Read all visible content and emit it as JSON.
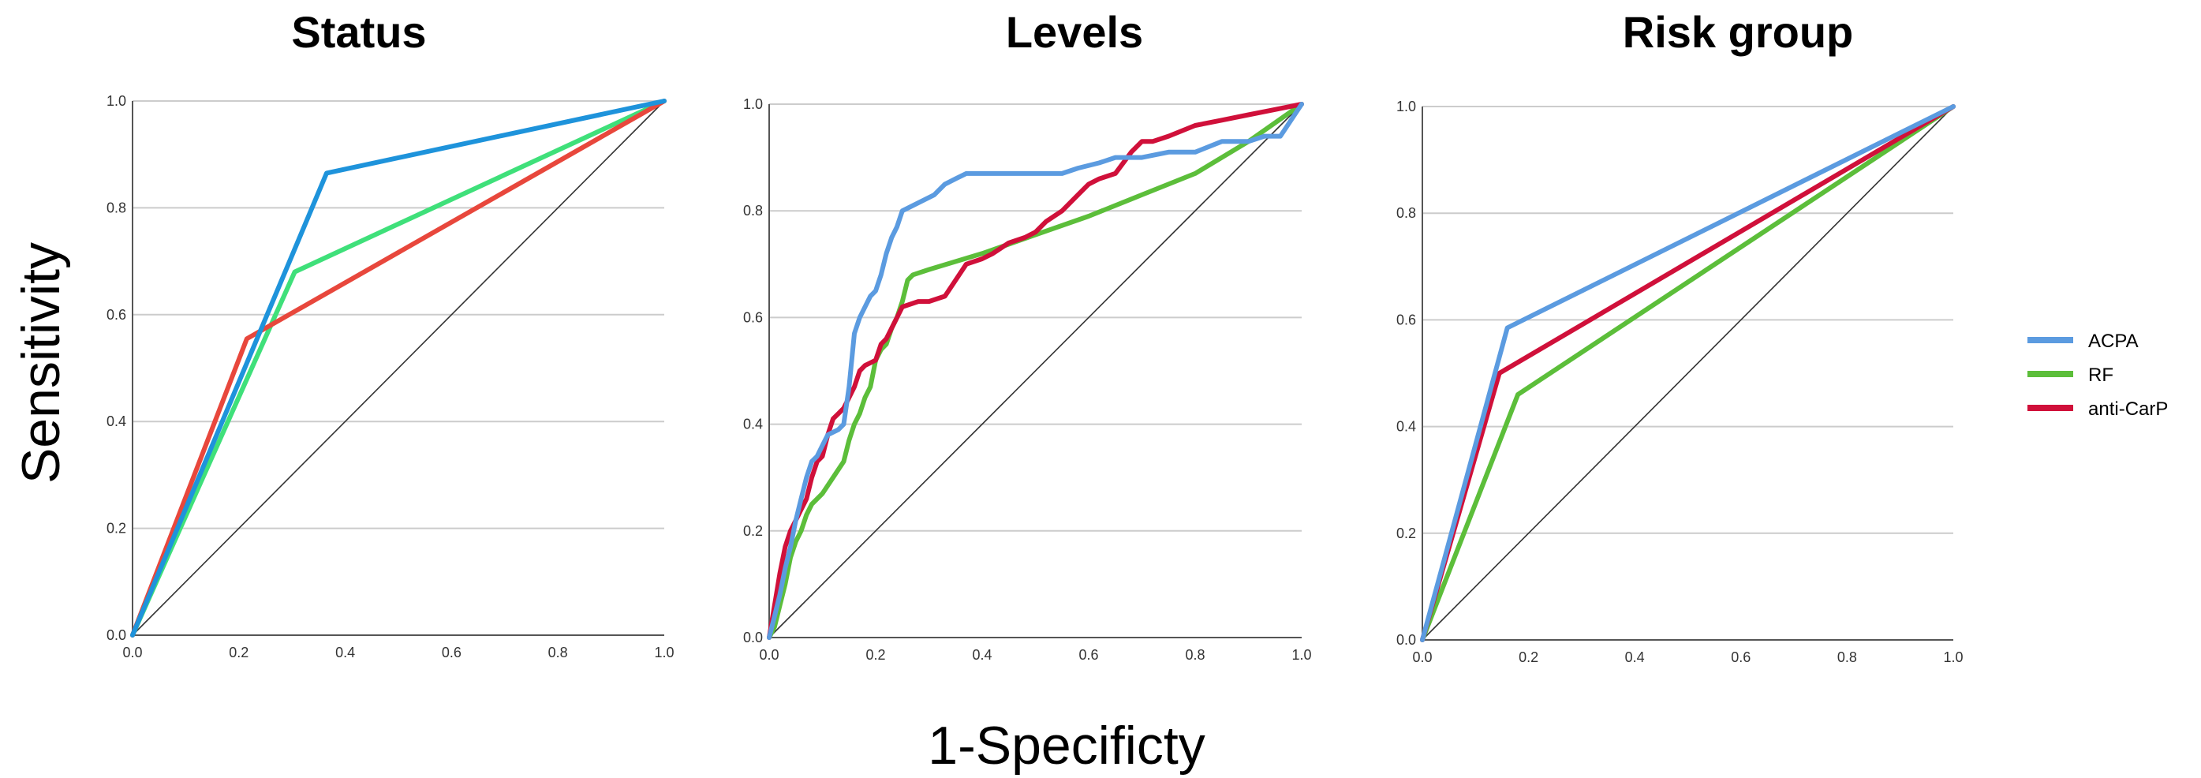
{
  "ylabel": "Sensitivity",
  "xlabel": "1-Specificty",
  "colors": {
    "ACPA": "#2E8FDC",
    "RF": "#5CBE3A",
    "anti-CarP": "#D0103A",
    "status_ACPA": "#1E93DB",
    "status_RF": "#3FE07A",
    "status_antiCarP": "#E8473C",
    "reference": "#333333",
    "grid": "#cccccc"
  },
  "legend": [
    {
      "name": "ACPA",
      "color": "#5B9BE0"
    },
    {
      "name": "RF",
      "color": "#5CBE3A"
    },
    {
      "name": "anti-CarP",
      "color": "#D0103A"
    }
  ],
  "chart_data": [
    {
      "type": "line",
      "title": "Status",
      "xlim": [
        0,
        1
      ],
      "ylim": [
        0,
        1
      ],
      "ticks": [
        "0.0",
        "0.2",
        "0.4",
        "0.6",
        "0.8",
        "1.0"
      ],
      "grid": "horizontal",
      "series": [
        {
          "key": "RF",
          "color": "#3FE07A",
          "points": [
            [
              0,
              0
            ],
            [
              0.305,
              0.68
            ],
            [
              1,
              1
            ]
          ]
        },
        {
          "key": "anti-CarP",
          "color": "#E8473C",
          "points": [
            [
              0,
              0
            ],
            [
              0.215,
              0.555
            ],
            [
              1,
              1
            ]
          ]
        },
        {
          "key": "ACPA",
          "color": "#1E93DB",
          "points": [
            [
              0,
              0
            ],
            [
              0.365,
              0.865
            ],
            [
              1,
              1
            ]
          ]
        }
      ]
    },
    {
      "type": "line",
      "title": "Levels",
      "xlim": [
        0,
        1
      ],
      "ylim": [
        0,
        1
      ],
      "ticks": [
        "0.0",
        "0.2",
        "0.4",
        "0.6",
        "0.8",
        "1.0"
      ],
      "grid": "horizontal",
      "series": [
        {
          "key": "RF",
          "color": "#5CBE3A",
          "points": [
            [
              0,
              0
            ],
            [
              0.01,
              0.02
            ],
            [
              0.02,
              0.06
            ],
            [
              0.03,
              0.1
            ],
            [
              0.04,
              0.15
            ],
            [
              0.05,
              0.18
            ],
            [
              0.06,
              0.2
            ],
            [
              0.07,
              0.23
            ],
            [
              0.08,
              0.25
            ],
            [
              0.1,
              0.27
            ],
            [
              0.12,
              0.3
            ],
            [
              0.14,
              0.33
            ],
            [
              0.15,
              0.37
            ],
            [
              0.16,
              0.4
            ],
            [
              0.17,
              0.42
            ],
            [
              0.18,
              0.45
            ],
            [
              0.19,
              0.47
            ],
            [
              0.2,
              0.52
            ],
            [
              0.21,
              0.54
            ],
            [
              0.22,
              0.55
            ],
            [
              0.23,
              0.58
            ],
            [
              0.24,
              0.6
            ],
            [
              0.25,
              0.63
            ],
            [
              0.26,
              0.67
            ],
            [
              0.27,
              0.68
            ],
            [
              0.3,
              0.69
            ],
            [
              0.4,
              0.72
            ],
            [
              0.5,
              0.755
            ],
            [
              0.6,
              0.79
            ],
            [
              0.7,
              0.83
            ],
            [
              0.8,
              0.87
            ],
            [
              0.9,
              0.93
            ],
            [
              1,
              1
            ]
          ]
        },
        {
          "key": "anti-CarP",
          "color": "#D0103A",
          "points": [
            [
              0,
              0
            ],
            [
              0.01,
              0.06
            ],
            [
              0.02,
              0.12
            ],
            [
              0.03,
              0.17
            ],
            [
              0.04,
              0.2
            ],
            [
              0.05,
              0.22
            ],
            [
              0.06,
              0.24
            ],
            [
              0.07,
              0.26
            ],
            [
              0.08,
              0.3
            ],
            [
              0.09,
              0.33
            ],
            [
              0.1,
              0.34
            ],
            [
              0.11,
              0.38
            ],
            [
              0.12,
              0.41
            ],
            [
              0.13,
              0.42
            ],
            [
              0.14,
              0.43
            ],
            [
              0.15,
              0.45
            ],
            [
              0.16,
              0.47
            ],
            [
              0.17,
              0.5
            ],
            [
              0.18,
              0.51
            ],
            [
              0.2,
              0.52
            ],
            [
              0.21,
              0.55
            ],
            [
              0.22,
              0.56
            ],
            [
              0.23,
              0.58
            ],
            [
              0.24,
              0.6
            ],
            [
              0.25,
              0.62
            ],
            [
              0.28,
              0.63
            ],
            [
              0.3,
              0.63
            ],
            [
              0.33,
              0.64
            ],
            [
              0.35,
              0.67
            ],
            [
              0.37,
              0.7
            ],
            [
              0.4,
              0.71
            ],
            [
              0.42,
              0.72
            ],
            [
              0.45,
              0.74
            ],
            [
              0.48,
              0.75
            ],
            [
              0.5,
              0.76
            ],
            [
              0.52,
              0.78
            ],
            [
              0.55,
              0.8
            ],
            [
              0.58,
              0.83
            ],
            [
              0.6,
              0.85
            ],
            [
              0.62,
              0.86
            ],
            [
              0.65,
              0.87
            ],
            [
              0.68,
              0.91
            ],
            [
              0.7,
              0.93
            ],
            [
              0.72,
              0.93
            ],
            [
              0.75,
              0.94
            ],
            [
              0.8,
              0.96
            ],
            [
              0.85,
              0.97
            ],
            [
              0.9,
              0.98
            ],
            [
              0.95,
              0.99
            ],
            [
              1,
              1
            ]
          ]
        },
        {
          "key": "ACPA",
          "color": "#5B9BE0",
          "points": [
            [
              0,
              0
            ],
            [
              0.01,
              0.04
            ],
            [
              0.02,
              0.08
            ],
            [
              0.03,
              0.13
            ],
            [
              0.04,
              0.17
            ],
            [
              0.05,
              0.22
            ],
            [
              0.06,
              0.26
            ],
            [
              0.07,
              0.3
            ],
            [
              0.08,
              0.33
            ],
            [
              0.09,
              0.34
            ],
            [
              0.1,
              0.36
            ],
            [
              0.11,
              0.38
            ],
            [
              0.13,
              0.39
            ],
            [
              0.14,
              0.4
            ],
            [
              0.15,
              0.47
            ],
            [
              0.16,
              0.57
            ],
            [
              0.17,
              0.6
            ],
            [
              0.18,
              0.62
            ],
            [
              0.19,
              0.64
            ],
            [
              0.2,
              0.65
            ],
            [
              0.21,
              0.68
            ],
            [
              0.22,
              0.72
            ],
            [
              0.23,
              0.75
            ],
            [
              0.24,
              0.77
            ],
            [
              0.25,
              0.8
            ],
            [
              0.27,
              0.81
            ],
            [
              0.29,
              0.82
            ],
            [
              0.31,
              0.83
            ],
            [
              0.33,
              0.85
            ],
            [
              0.35,
              0.86
            ],
            [
              0.37,
              0.87
            ],
            [
              0.4,
              0.87
            ],
            [
              0.45,
              0.87
            ],
            [
              0.5,
              0.87
            ],
            [
              0.55,
              0.87
            ],
            [
              0.58,
              0.88
            ],
            [
              0.62,
              0.89
            ],
            [
              0.65,
              0.9
            ],
            [
              0.7,
              0.9
            ],
            [
              0.75,
              0.91
            ],
            [
              0.8,
              0.91
            ],
            [
              0.85,
              0.93
            ],
            [
              0.9,
              0.93
            ],
            [
              0.93,
              0.94
            ],
            [
              0.96,
              0.94
            ],
            [
              1,
              1
            ]
          ]
        }
      ]
    },
    {
      "type": "line",
      "title": "Risk group",
      "xlim": [
        0,
        1
      ],
      "ylim": [
        0,
        1
      ],
      "ticks": [
        "0.0",
        "0.2",
        "0.4",
        "0.6",
        "0.8",
        "1.0"
      ],
      "grid": "horizontal",
      "series": [
        {
          "key": "RF",
          "color": "#5CBE3A",
          "points": [
            [
              0,
              0
            ],
            [
              0.18,
              0.46
            ],
            [
              1,
              1
            ]
          ]
        },
        {
          "key": "anti-CarP",
          "color": "#D0103A",
          "points": [
            [
              0,
              0
            ],
            [
              0.145,
              0.5
            ],
            [
              1,
              1
            ]
          ]
        },
        {
          "key": "ACPA",
          "color": "#5B9BE0",
          "points": [
            [
              0,
              0
            ],
            [
              0.16,
              0.585
            ],
            [
              1,
              1
            ]
          ]
        }
      ]
    }
  ]
}
